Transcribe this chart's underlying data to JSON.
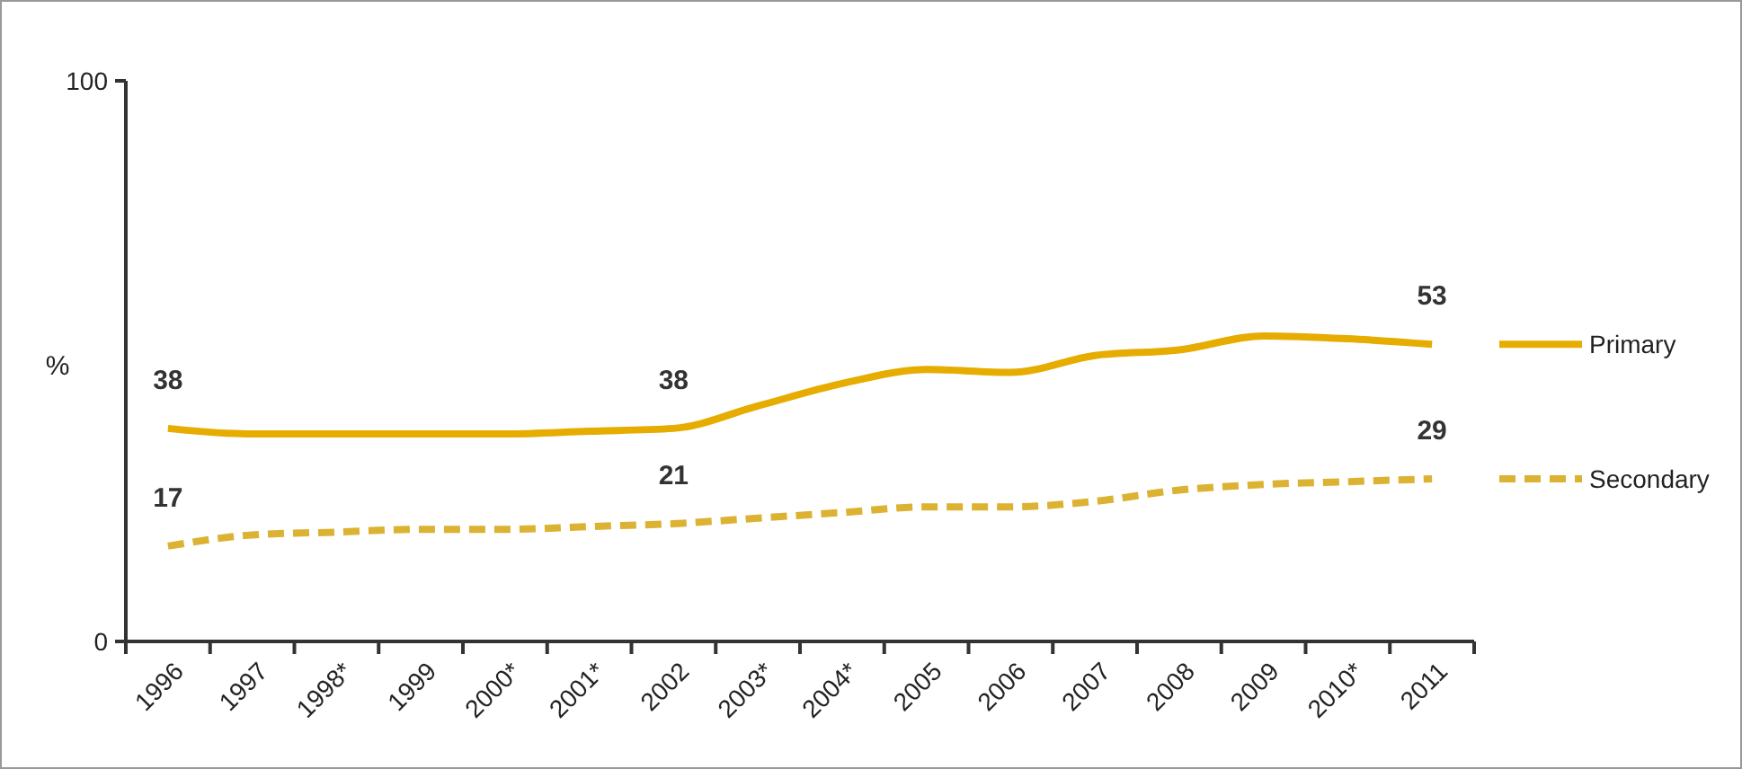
{
  "chart_data": {
    "type": "line",
    "ylabel": "%",
    "categories": [
      "1996",
      "1997",
      "1998*",
      "1999",
      "2000*",
      "2001*",
      "2002",
      "2003*",
      "2004*",
      "2005",
      "2006",
      "2007",
      "2008",
      "2009",
      "2010*",
      "2011"
    ],
    "ylim": [
      0,
      100
    ],
    "yticks": [
      0,
      100
    ],
    "grid": false,
    "legend": "right",
    "marker": "none",
    "series": [
      {
        "name": "Primary",
        "color": "#e6ac00",
        "line_style": "solid",
        "values": [
          38,
          37,
          37,
          37,
          37,
          37.5,
          38,
          42,
          46,
          48.5,
          48,
          51,
          52,
          54.5,
          54,
          53
        ],
        "value_labels": [
          "38",
          null,
          null,
          null,
          null,
          null,
          "38",
          null,
          null,
          null,
          null,
          null,
          null,
          null,
          null,
          "53"
        ]
      },
      {
        "name": "Secondary",
        "color": "#dcb232",
        "line_style": "dashed",
        "values": [
          17,
          19,
          19.5,
          20,
          20,
          20.5,
          21,
          22,
          23,
          24,
          24,
          25,
          27,
          28,
          28.5,
          29
        ],
        "value_labels": [
          "17",
          null,
          null,
          null,
          null,
          null,
          "21",
          null,
          null,
          null,
          null,
          null,
          null,
          null,
          null,
          "29"
        ]
      }
    ]
  }
}
